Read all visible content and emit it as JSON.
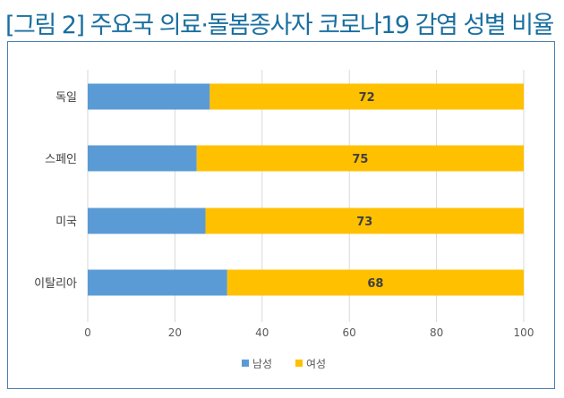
{
  "chart_data": {
    "type": "bar",
    "orientation": "horizontal",
    "stacked": true,
    "title": "[그림 2] 주요국 의료·돌봄종사자 코로나19 감염 성별 비율",
    "categories": [
      "독일",
      "스페인",
      "미국",
      "이탈리아"
    ],
    "series": [
      {
        "name": "남성",
        "values": [
          28,
          25,
          27,
          32
        ],
        "color": "#5b9bd5"
      },
      {
        "name": "여성",
        "values": [
          72,
          75,
          73,
          68
        ],
        "color": "#ffc000",
        "show_labels": true
      }
    ],
    "xlim": [
      0,
      100
    ],
    "xticks": [
      0,
      20,
      40,
      60,
      80,
      100
    ],
    "grid": true,
    "legend": "bottom"
  }
}
